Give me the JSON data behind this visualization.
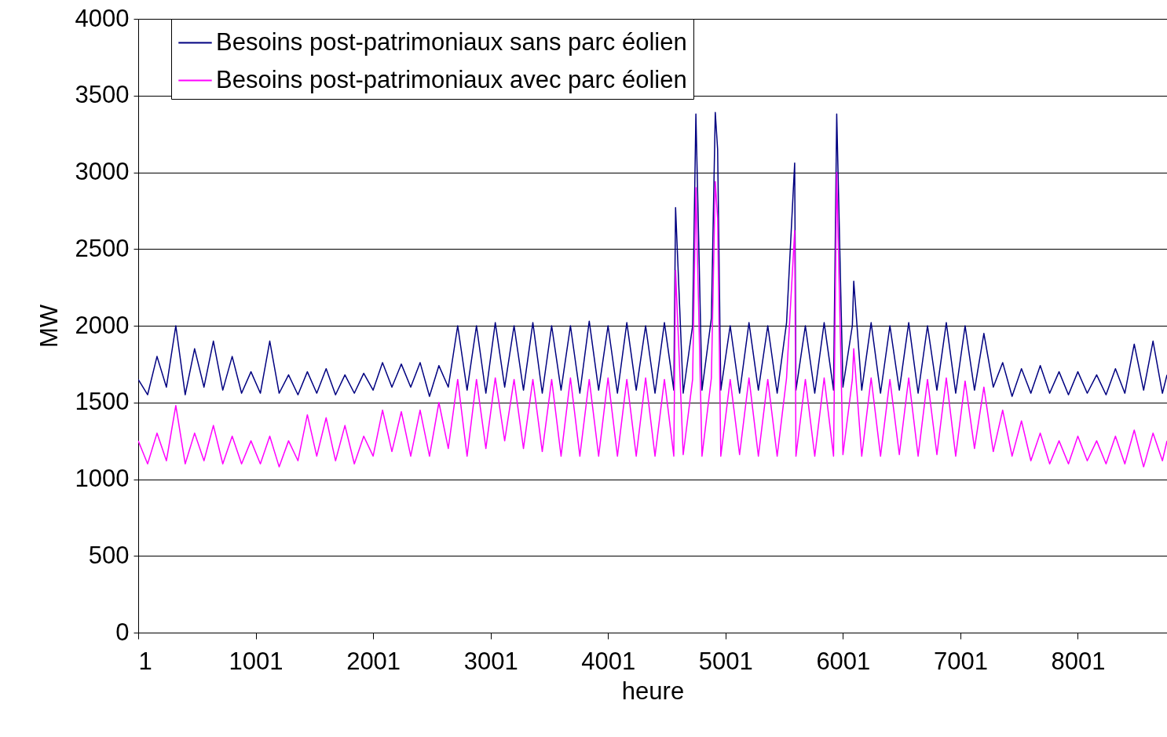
{
  "chart_data": {
    "type": "line",
    "xlabel": "heure",
    "ylabel": "MW",
    "x": [
      1,
      81,
      161,
      241,
      321,
      401,
      481,
      561,
      641,
      721,
      801,
      881,
      961,
      1041,
      1121,
      1201,
      1281,
      1361,
      1441,
      1521,
      1601,
      1681,
      1761,
      1841,
      1921,
      2001,
      2081,
      2161,
      2241,
      2321,
      2401,
      2481,
      2561,
      2641,
      2721,
      2801,
      2881,
      2961,
      3041,
      3121,
      3201,
      3281,
      3361,
      3441,
      3521,
      3601,
      3681,
      3761,
      3841,
      3921,
      4001,
      4081,
      4161,
      4241,
      4321,
      4401,
      4481,
      4561,
      4576,
      4641,
      4721,
      4749,
      4801,
      4881,
      4914,
      4934,
      4961,
      5041,
      5121,
      5201,
      5281,
      5361,
      5441,
      5521,
      5590,
      5601,
      5681,
      5761,
      5841,
      5921,
      5948,
      6001,
      6081,
      6093,
      6161,
      6241,
      6321,
      6401,
      6481,
      6561,
      6641,
      6721,
      6801,
      6881,
      6961,
      7041,
      7121,
      7201,
      7281,
      7361,
      7441,
      7521,
      7601,
      7681,
      7761,
      7841,
      7921,
      8001,
      8081,
      8161,
      8241,
      8321,
      8401,
      8481,
      8561,
      8641,
      8721,
      8760
    ],
    "series": [
      {
        "name": "Besoins post-patrimoniaux sans parc éolien",
        "color": "#000080",
        "values": [
          1650,
          1550,
          1800,
          1600,
          2000,
          1550,
          1850,
          1600,
          1900,
          1580,
          1800,
          1560,
          1700,
          1560,
          1900,
          1560,
          1680,
          1550,
          1700,
          1560,
          1720,
          1550,
          1680,
          1560,
          1690,
          1580,
          1760,
          1600,
          1750,
          1600,
          1760,
          1540,
          1740,
          1600,
          2000,
          1580,
          2000,
          1560,
          2020,
          1600,
          2000,
          1580,
          2020,
          1560,
          2000,
          1580,
          2000,
          1560,
          2030,
          1580,
          2000,
          1560,
          2020,
          1580,
          2000,
          1560,
          2020,
          1580,
          2770,
          1560,
          2000,
          3380,
          1580,
          2050,
          3390,
          3150,
          1580,
          2000,
          1560,
          2020,
          1580,
          2000,
          1560,
          2020,
          3060,
          1580,
          2000,
          1560,
          2020,
          1580,
          3380,
          1600,
          2000,
          2290,
          1580,
          2020,
          1560,
          2000,
          1580,
          2020,
          1560,
          2000,
          1580,
          2020,
          1560,
          2000,
          1580,
          1950,
          1600,
          1760,
          1540,
          1720,
          1560,
          1740,
          1560,
          1700,
          1550,
          1700,
          1560,
          1680,
          1550,
          1720,
          1560,
          1880,
          1580,
          1900,
          1560,
          1680
        ]
      },
      {
        "name": "Besoins post-patrimoniaux avec parc éolien",
        "color": "#ff00ff",
        "values": [
          1250,
          1100,
          1300,
          1120,
          1480,
          1100,
          1300,
          1120,
          1350,
          1100,
          1280,
          1100,
          1250,
          1100,
          1280,
          1080,
          1250,
          1120,
          1420,
          1150,
          1400,
          1120,
          1350,
          1100,
          1280,
          1150,
          1450,
          1180,
          1440,
          1150,
          1450,
          1150,
          1500,
          1200,
          1650,
          1150,
          1650,
          1200,
          1660,
          1250,
          1650,
          1200,
          1650,
          1180,
          1650,
          1150,
          1660,
          1150,
          1650,
          1150,
          1660,
          1150,
          1650,
          1150,
          1660,
          1150,
          1650,
          1150,
          2360,
          1160,
          1650,
          2900,
          1150,
          1660,
          2940,
          2700,
          1150,
          1650,
          1160,
          1660,
          1150,
          1650,
          1150,
          1660,
          2620,
          1150,
          1650,
          1150,
          1660,
          1150,
          3000,
          1160,
          1650,
          1850,
          1150,
          1660,
          1150,
          1650,
          1160,
          1660,
          1150,
          1650,
          1160,
          1660,
          1150,
          1640,
          1200,
          1600,
          1180,
          1450,
          1150,
          1380,
          1120,
          1300,
          1100,
          1250,
          1100,
          1280,
          1120,
          1250,
          1100,
          1280,
          1100,
          1320,
          1080,
          1300,
          1120,
          1250
        ]
      }
    ],
    "xlim": [
      1,
      8760
    ],
    "xticks": [
      1,
      1001,
      2001,
      3001,
      4001,
      5001,
      6001,
      7001,
      8001
    ],
    "ylim": [
      0,
      4000
    ],
    "yticks": [
      0,
      500,
      1000,
      1500,
      2000,
      2500,
      3000,
      3500,
      4000
    ],
    "grid": "y",
    "legend": "top left",
    "marker": "none",
    "line_style": "solid"
  }
}
